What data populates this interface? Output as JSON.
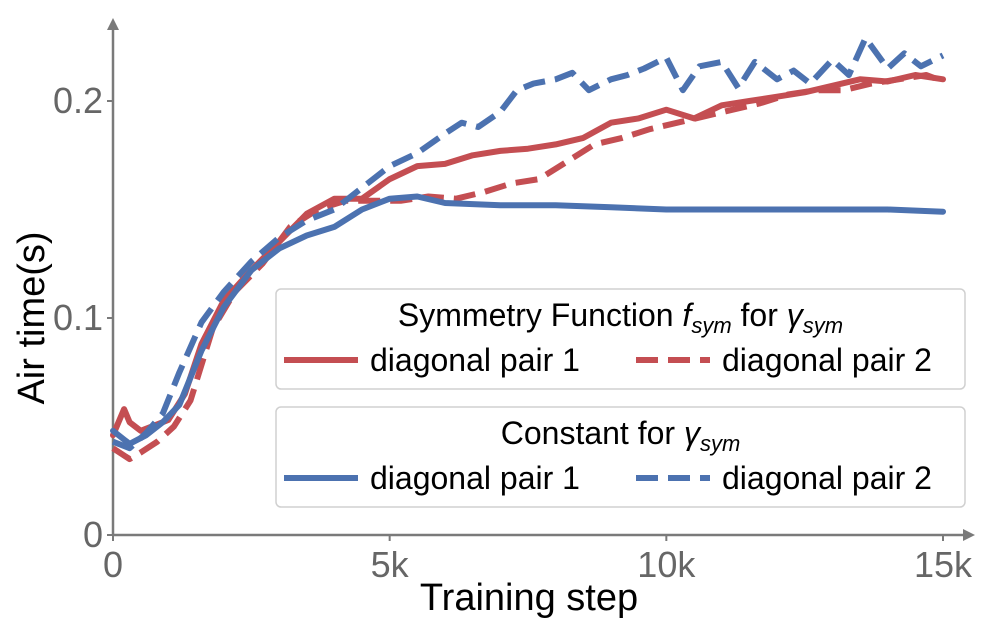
{
  "chart_data": {
    "type": "line",
    "xlabel": "Training step",
    "ylabel": "Air time(s)",
    "xlim": [
      0,
      15500
    ],
    "ylim": [
      0,
      0.235
    ],
    "x_ticks": [
      {
        "value": 0,
        "label": "0"
      },
      {
        "value": 5000,
        "label": "5k"
      },
      {
        "value": 10000,
        "label": "10k"
      },
      {
        "value": 15000,
        "label": "15k"
      }
    ],
    "y_ticks": [
      {
        "value": 0,
        "label": "0"
      },
      {
        "value": 0.1,
        "label": "0.1"
      },
      {
        "value": 0.2,
        "label": "0.2"
      }
    ],
    "legends": [
      {
        "title": "Symmetry Function",
        "title_math": "f",
        "title_sub": "sym",
        "title_suffix": " for ",
        "title_math2": "γ",
        "title_sub2": "sym",
        "entries": [
          {
            "label": "diagonal pair 1",
            "series": 0
          },
          {
            "label": "diagonal pair 2",
            "series": 1
          }
        ]
      },
      {
        "title": "Constant for ",
        "title_math": "γ",
        "title_sub": "sym",
        "entries": [
          {
            "label": "diagonal pair 1",
            "series": 2
          },
          {
            "label": "diagonal pair 2",
            "series": 3
          }
        ]
      }
    ],
    "series": [
      {
        "name": "Symmetry Function — diagonal pair 1",
        "color": "#c44e52",
        "dash": "solid",
        "x": [
          0,
          200,
          300,
          500,
          700,
          1000,
          1300,
          1600,
          2000,
          2500,
          3000,
          3500,
          4000,
          4500,
          5000,
          5500,
          6000,
          6500,
          7000,
          7500,
          8000,
          8500,
          9000,
          9500,
          10000,
          10500,
          11000,
          11500,
          12000,
          12500,
          13000,
          13500,
          14000,
          14500,
          15000
        ],
        "values": [
          0.046,
          0.058,
          0.052,
          0.048,
          0.05,
          0.053,
          0.065,
          0.088,
          0.108,
          0.122,
          0.135,
          0.148,
          0.155,
          0.155,
          0.164,
          0.17,
          0.171,
          0.175,
          0.177,
          0.178,
          0.18,
          0.183,
          0.19,
          0.192,
          0.196,
          0.192,
          0.198,
          0.2,
          0.202,
          0.204,
          0.207,
          0.21,
          0.209,
          0.212,
          0.21
        ]
      },
      {
        "name": "Symmetry Function — diagonal pair 2",
        "color": "#c44e52",
        "dash": "dashed",
        "x": [
          0,
          300,
          500,
          800,
          1100,
          1400,
          1800,
          2200,
          2700,
          3200,
          3700,
          4200,
          4700,
          5200,
          5700,
          6200,
          6700,
          7200,
          7700,
          8200,
          8700,
          9200,
          9700,
          10200,
          10700,
          11200,
          11700,
          12200,
          12700,
          13200,
          13700,
          14200,
          14700,
          15000
        ],
        "values": [
          0.04,
          0.035,
          0.038,
          0.043,
          0.05,
          0.062,
          0.095,
          0.112,
          0.125,
          0.142,
          0.15,
          0.154,
          0.154,
          0.154,
          0.156,
          0.155,
          0.158,
          0.162,
          0.164,
          0.172,
          0.18,
          0.183,
          0.187,
          0.19,
          0.193,
          0.196,
          0.199,
          0.203,
          0.205,
          0.205,
          0.208,
          0.21,
          0.212,
          0.209
        ]
      },
      {
        "name": "Constant — diagonal pair 1",
        "color": "#4c72b0",
        "dash": "solid",
        "x": [
          0,
          300,
          600,
          900,
          1200,
          1600,
          2000,
          2500,
          3000,
          3500,
          4000,
          4500,
          5000,
          5500,
          6000,
          7000,
          8000,
          9000,
          10000,
          11000,
          12000,
          13000,
          14000,
          15000
        ],
        "values": [
          0.048,
          0.042,
          0.046,
          0.052,
          0.06,
          0.085,
          0.105,
          0.122,
          0.132,
          0.138,
          0.142,
          0.15,
          0.155,
          0.156,
          0.153,
          0.152,
          0.152,
          0.151,
          0.15,
          0.15,
          0.15,
          0.15,
          0.15,
          0.149
        ]
      },
      {
        "name": "Constant — diagonal pair 2",
        "color": "#4c72b0",
        "dash": "dashed",
        "x": [
          0,
          300,
          600,
          900,
          1200,
          1600,
          2000,
          2500,
          3000,
          3500,
          4000,
          4500,
          5000,
          5500,
          6000,
          6300,
          6600,
          7000,
          7300,
          7600,
          8000,
          8300,
          8600,
          9000,
          9300,
          9600,
          10000,
          10300,
          10600,
          11000,
          11300,
          11600,
          12000,
          12300,
          12600,
          13000,
          13300,
          13600,
          14000,
          14300,
          14600,
          15000
        ],
        "values": [
          0.043,
          0.04,
          0.047,
          0.056,
          0.075,
          0.098,
          0.112,
          0.126,
          0.137,
          0.145,
          0.15,
          0.16,
          0.17,
          0.176,
          0.185,
          0.19,
          0.188,
          0.195,
          0.205,
          0.208,
          0.21,
          0.213,
          0.205,
          0.21,
          0.212,
          0.215,
          0.22,
          0.205,
          0.216,
          0.218,
          0.206,
          0.218,
          0.21,
          0.214,
          0.208,
          0.219,
          0.212,
          0.229,
          0.215,
          0.222,
          0.216,
          0.221
        ]
      }
    ]
  }
}
